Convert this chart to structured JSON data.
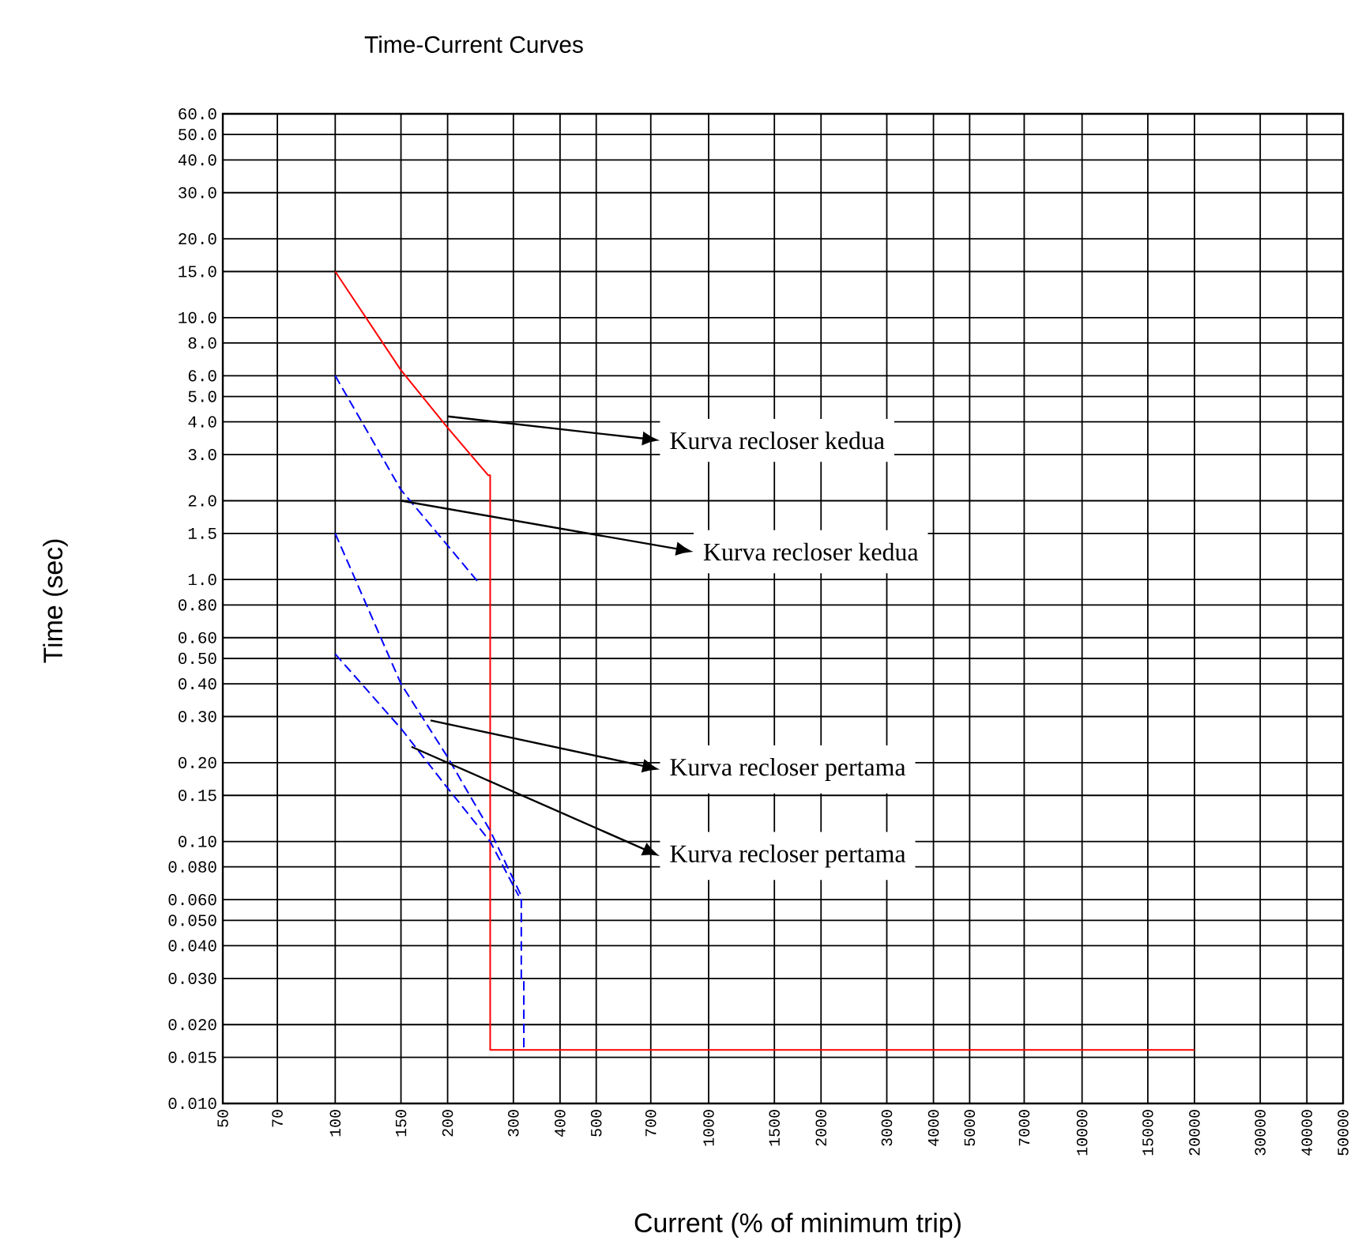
{
  "chart_data": {
    "type": "line",
    "title": "Time-Current Curves",
    "xlabel": "Current (% of minimum trip)",
    "ylabel": "Time (sec)",
    "log": "xy",
    "grid": true,
    "marker": "none",
    "xlim": [
      50,
      50000
    ],
    "xticks": [
      50,
      70,
      100,
      150,
      200,
      300,
      400,
      500,
      700,
      1000,
      1500,
      2000,
      3000,
      4000,
      5000,
      7000,
      10000,
      15000,
      20000,
      30000,
      40000,
      50000
    ],
    "ylim": [
      0.01,
      60
    ],
    "yticks": [
      {
        "value": 0.01,
        "label": "0.010"
      },
      {
        "value": 0.015,
        "label": "0.015"
      },
      {
        "value": 0.02,
        "label": "0.020"
      },
      {
        "value": 0.03,
        "label": "0.030"
      },
      {
        "value": 0.04,
        "label": "0.040"
      },
      {
        "value": 0.05,
        "label": "0.050"
      },
      {
        "value": 0.06,
        "label": "0.060"
      },
      {
        "value": 0.08,
        "label": "0.080"
      },
      {
        "value": 0.1,
        "label": "0.10"
      },
      {
        "value": 0.15,
        "label": "0.15"
      },
      {
        "value": 0.2,
        "label": "0.20"
      },
      {
        "value": 0.3,
        "label": "0.30"
      },
      {
        "value": 0.4,
        "label": "0.40"
      },
      {
        "value": 0.5,
        "label": "0.50"
      },
      {
        "value": 0.6,
        "label": "0.60"
      },
      {
        "value": 0.8,
        "label": "0.80"
      },
      {
        "value": 1,
        "label": "1.0"
      },
      {
        "value": 1.5,
        "label": "1.5"
      },
      {
        "value": 2,
        "label": "2.0"
      },
      {
        "value": 3,
        "label": "3.0"
      },
      {
        "value": 4,
        "label": "4.0"
      },
      {
        "value": 5,
        "label": "5.0"
      },
      {
        "value": 6,
        "label": "6.0"
      },
      {
        "value": 8,
        "label": "8.0"
      },
      {
        "value": 10,
        "label": "10.0"
      },
      {
        "value": 15,
        "label": "15.0"
      },
      {
        "value": 20,
        "label": "20.0"
      },
      {
        "value": 30,
        "label": "30.0"
      },
      {
        "value": 40,
        "label": "40.0"
      },
      {
        "value": 50,
        "label": "50.0"
      },
      {
        "value": 60,
        "label": "60.0"
      }
    ],
    "series": [
      {
        "color": "#ff0000",
        "line_style": "solid",
        "x": [
          100,
          150,
          200,
          257,
          260,
          260,
          20000
        ],
        "values": [
          15,
          6.3,
          3.8,
          2.5,
          2.5,
          0.016,
          0.016
        ]
      },
      {
        "color": "#0000ff",
        "line_style": "dashed",
        "x": [
          100,
          150,
          200,
          244
        ],
        "values": [
          6,
          2.2,
          1.35,
          0.96
        ]
      },
      {
        "color": "#0000ff",
        "line_style": "dashed",
        "x": [
          100,
          150,
          200,
          260,
          315,
          315,
          320,
          320
        ],
        "values": [
          1.5,
          0.4,
          0.21,
          0.11,
          0.062,
          0.03,
          0.03,
          0.016
        ]
      },
      {
        "color": "#0000ff",
        "line_style": "dashed",
        "x": [
          100,
          150,
          200,
          260,
          310
        ],
        "values": [
          0.52,
          0.27,
          0.16,
          0.1,
          0.062
        ]
      }
    ],
    "annotations": [
      {
        "text": "Kurva recloser kedua",
        "x": 200,
        "y": 4.2
      },
      {
        "text": "Kurva recloser kedua",
        "x": 150,
        "y": 2.0
      },
      {
        "text": "Kurva recloser pertama",
        "x": 180,
        "y": 0.29
      },
      {
        "text": "Kurva recloser pertama",
        "x": 160,
        "y": 0.23
      }
    ]
  }
}
